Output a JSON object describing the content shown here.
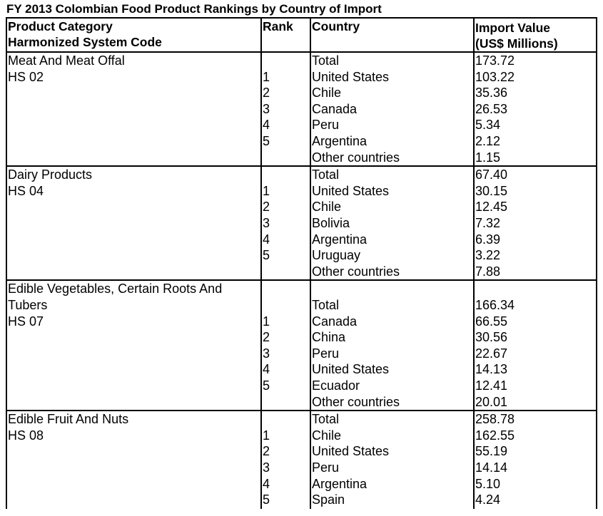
{
  "title": "FY 2013 Colombian Food Product Rankings by Country of Import",
  "headers": {
    "category_line1": "Product Category",
    "category_line2": "Harmonized System Code",
    "rank": "Rank",
    "country": "Country",
    "value_line1": "Import Value",
    "value_line2": "(US$ Millions)"
  },
  "groups": [
    {
      "category": [
        "Meat And Meat Offal",
        "HS 02"
      ],
      "rows": [
        {
          "rank": "",
          "country": "Total",
          "value": "173.72"
        },
        {
          "rank": "1",
          "country": "United States",
          "value": "103.22"
        },
        {
          "rank": "2",
          "country": "Chile",
          "value": "35.36"
        },
        {
          "rank": "3",
          "country": "Canada",
          "value": "26.53"
        },
        {
          "rank": "4",
          "country": "Peru",
          "value": "5.34"
        },
        {
          "rank": "5",
          "country": "Argentina",
          "value": "2.12"
        },
        {
          "rank": "",
          "country": "Other countries",
          "value": "1.15"
        }
      ]
    },
    {
      "category": [
        "Dairy Products",
        "HS 04"
      ],
      "rows": [
        {
          "rank": "",
          "country": "Total",
          "value": "67.40"
        },
        {
          "rank": "1",
          "country": "United States",
          "value": "30.15"
        },
        {
          "rank": "2",
          "country": "Chile",
          "value": "12.45"
        },
        {
          "rank": "3",
          "country": "Bolivia",
          "value": "7.32"
        },
        {
          "rank": "4",
          "country": "Argentina",
          "value": "6.39"
        },
        {
          "rank": "5",
          "country": "Uruguay",
          "value": "3.22"
        },
        {
          "rank": "",
          "country": "Other countries",
          "value": "7.88"
        }
      ]
    },
    {
      "category": [
        "Edible Vegetables, Certain Roots And",
        "Tubers",
        "HS 07"
      ],
      "rows": [
        {
          "rank": "",
          "country": "Total",
          "value": "166.34"
        },
        {
          "rank": "1",
          "country": "Canada",
          "value": "66.55"
        },
        {
          "rank": "2",
          "country": "China",
          "value": "30.56"
        },
        {
          "rank": "3",
          "country": "Peru",
          "value": "22.67"
        },
        {
          "rank": "4",
          "country": "United States",
          "value": "14.13"
        },
        {
          "rank": "5",
          "country": "Ecuador",
          "value": "12.41"
        },
        {
          "rank": "",
          "country": "Other countries",
          "value": "20.01"
        }
      ]
    },
    {
      "category": [
        "Edible Fruit And Nuts",
        "HS 08"
      ],
      "rows": [
        {
          "rank": "",
          "country": "Total",
          "value": "258.78"
        },
        {
          "rank": "1",
          "country": "Chile",
          "value": "162.55"
        },
        {
          "rank": "2",
          "country": "United States",
          "value": "55.19"
        },
        {
          "rank": "3",
          "country": "Peru",
          "value": "14.14"
        },
        {
          "rank": "4",
          "country": "Argentina",
          "value": "5.10"
        },
        {
          "rank": "5",
          "country": "Spain",
          "value": "4.24"
        }
      ]
    }
  ]
}
